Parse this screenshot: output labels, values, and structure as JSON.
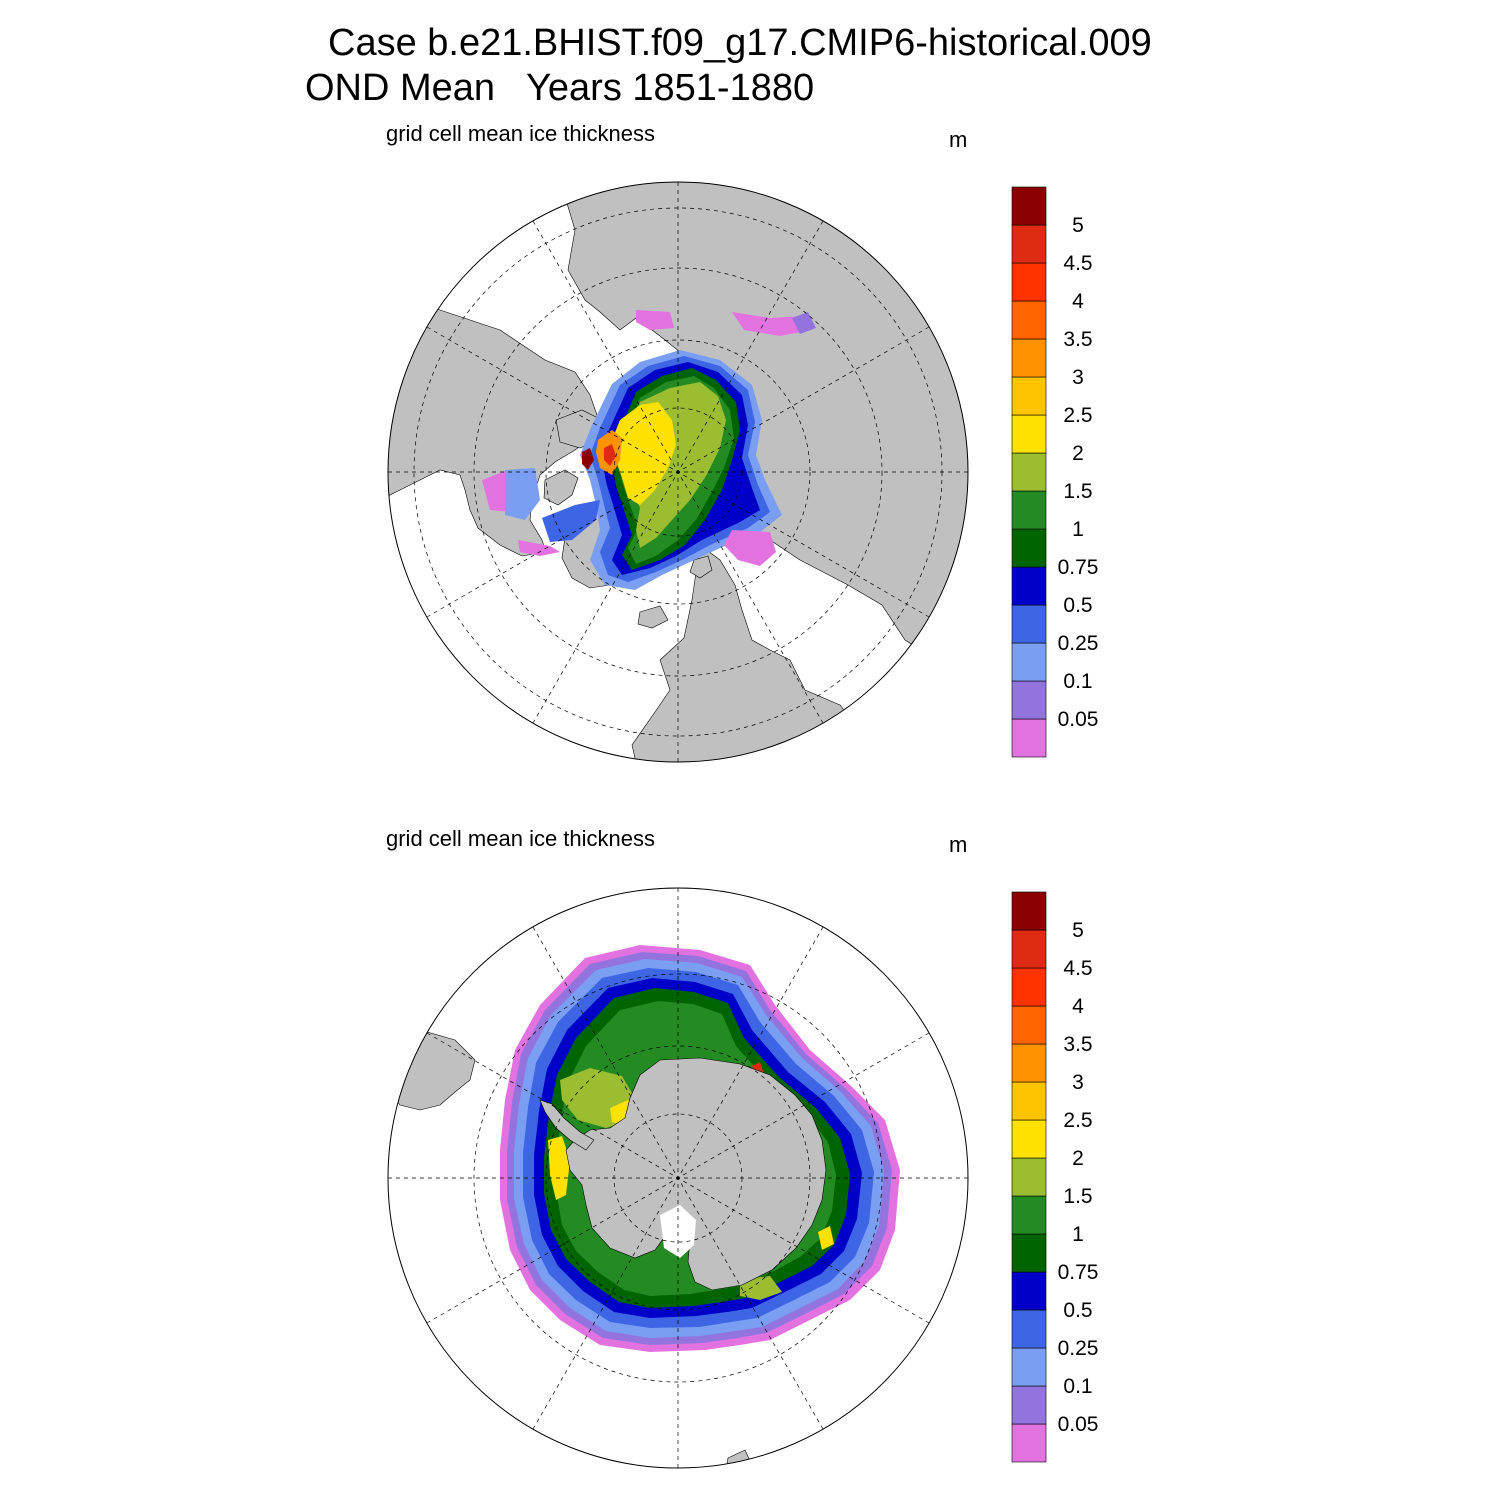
{
  "title": {
    "line1": "Case b.e21.BHIST.f09_g17.CMIP6-historical.009",
    "line2": "OND Mean   Years 1851-1880"
  },
  "panels": [
    {
      "id": "north",
      "hemisphere": "Northern",
      "subtitle": "grid cell mean ice thickness",
      "units": "m"
    },
    {
      "id": "south",
      "hemisphere": "Southern",
      "subtitle": "grid cell mean ice thickness",
      "units": "m"
    }
  ],
  "colorbar": {
    "levels": [
      "0.05",
      "0.1",
      "0.25",
      "0.5",
      "0.75",
      "1",
      "1.5",
      "2",
      "2.5",
      "3",
      "3.5",
      "4",
      "4.5",
      "5"
    ],
    "colors": [
      "#e272e0",
      "#9374df",
      "#7a9ef2",
      "#3e66e4",
      "#0000c8",
      "#006400",
      "#238b22",
      "#9abd32",
      "#ffe100",
      "#ffc300",
      "#ff9200",
      "#ff6400",
      "#ff3300",
      "#de2b14",
      "#8b0000"
    ]
  },
  "map_colors": {
    "land": "#c0c0c0",
    "ocean": "#ffffff"
  }
}
